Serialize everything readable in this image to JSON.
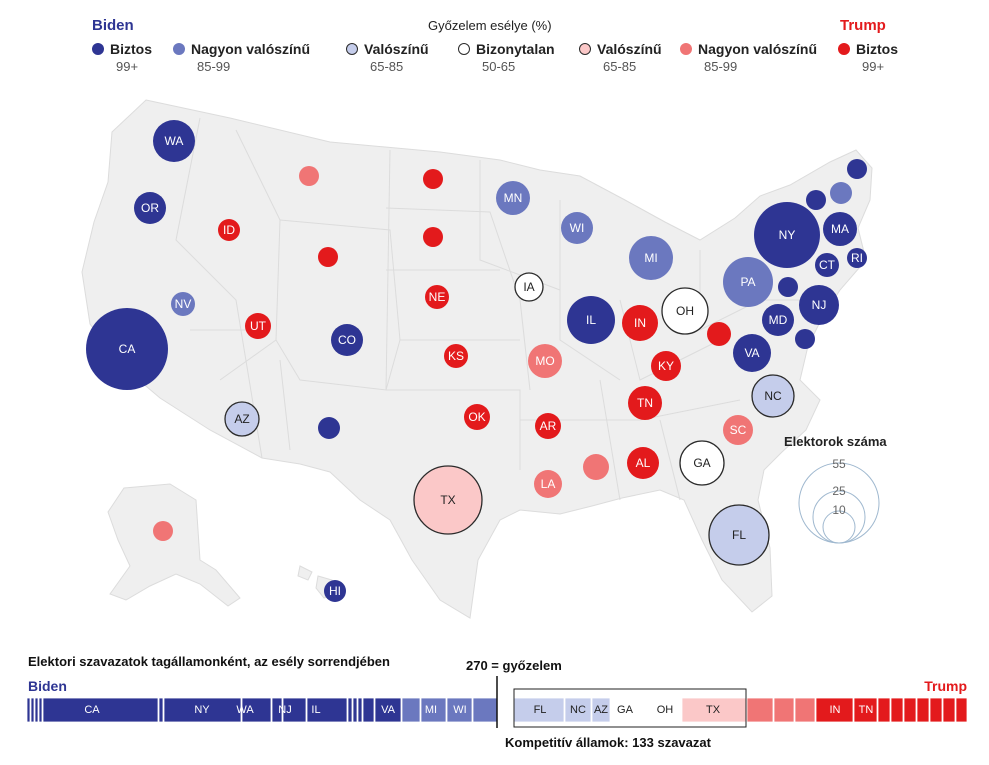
{
  "header": {
    "left_candidate": "Biden",
    "right_candidate": "Trump",
    "legend_title": "Győzelem esélye (%)",
    "colors": {
      "biden": "#2e3593",
      "trump": "#e31a1c"
    }
  },
  "legend": [
    {
      "label": "Biztos",
      "range": "99+",
      "color": "#2e3593",
      "stroke": "#2e3593"
    },
    {
      "label": "Nagyon valószínű",
      "range": "85-99",
      "color": "#6b78bf",
      "stroke": "#6b78bf"
    },
    {
      "label": "Valószínű",
      "range": "65-85",
      "color": "#c5cdeb",
      "stroke": "#2b2b2b"
    },
    {
      "label": "Bizonytalan",
      "range": "50-65",
      "color": "#ffffff",
      "stroke": "#2b2b2b"
    },
    {
      "label": "Valószínű",
      "range": "65-85",
      "color": "#fbc8c8",
      "stroke": "#2b2b2b"
    },
    {
      "label": "Nagyon valószínű",
      "range": "85-99",
      "color": "#f07575",
      "stroke": "#f07575"
    },
    {
      "label": "Biztos",
      "range": "99+",
      "color": "#e31a1c",
      "stroke": "#e31a1c"
    }
  ],
  "size_legend": {
    "title": "Elektorok száma",
    "values": [
      "55",
      "25",
      "10"
    ]
  },
  "states": [
    {
      "label": "WA",
      "cat": "safe-d"
    },
    {
      "label": "OR",
      "cat": "safe-d"
    },
    {
      "label": "CA",
      "cat": "safe-d"
    },
    {
      "label": "NV",
      "cat": "very-d"
    },
    {
      "label": "ID",
      "cat": "safe-r"
    },
    {
      "label": "UT",
      "cat": "safe-r"
    },
    {
      "label": "AZ",
      "cat": "likely-d"
    },
    {
      "label": "CO",
      "cat": "safe-d"
    },
    {
      "label": "",
      "cat": "safe-d"
    },
    {
      "label": "",
      "cat": "very-r"
    },
    {
      "label": "",
      "cat": "safe-r"
    },
    {
      "label": "",
      "cat": "safe-r"
    },
    {
      "label": "",
      "cat": "safe-r"
    },
    {
      "label": "NE",
      "cat": "safe-r"
    },
    {
      "label": "KS",
      "cat": "safe-r"
    },
    {
      "label": "OK",
      "cat": "safe-r"
    },
    {
      "label": "TX",
      "cat": "likely-r"
    },
    {
      "label": "MN",
      "cat": "very-d"
    },
    {
      "label": "IA",
      "cat": "tossup"
    },
    {
      "label": "MO",
      "cat": "very-r"
    },
    {
      "label": "AR",
      "cat": "safe-r"
    },
    {
      "label": "LA",
      "cat": "very-r"
    },
    {
      "label": "WI",
      "cat": "very-d"
    },
    {
      "label": "IL",
      "cat": "safe-d"
    },
    {
      "label": "MI",
      "cat": "very-d"
    },
    {
      "label": "IN",
      "cat": "safe-r"
    },
    {
      "label": "OH",
      "cat": "tossup"
    },
    {
      "label": "KY",
      "cat": "safe-r"
    },
    {
      "label": "TN",
      "cat": "safe-r"
    },
    {
      "label": "",
      "cat": "very-r"
    },
    {
      "label": "AL",
      "cat": "safe-r"
    },
    {
      "label": "GA",
      "cat": "tossup"
    },
    {
      "label": "FL",
      "cat": "likely-d"
    },
    {
      "label": "SC",
      "cat": "very-r"
    },
    {
      "label": "NC",
      "cat": "likely-d"
    },
    {
      "label": "VA",
      "cat": "safe-d"
    },
    {
      "label": "",
      "cat": "safe-r"
    },
    {
      "label": "PA",
      "cat": "very-d"
    },
    {
      "label": "NY",
      "cat": "safe-d"
    },
    {
      "label": "MD",
      "cat": "safe-d"
    },
    {
      "label": "",
      "cat": "safe-d"
    },
    {
      "label": "",
      "cat": "safe-d"
    },
    {
      "label": "NJ",
      "cat": "safe-d"
    },
    {
      "label": "CT",
      "cat": "safe-d"
    },
    {
      "label": "RI",
      "cat": "safe-d"
    },
    {
      "label": "MA",
      "cat": "safe-d"
    },
    {
      "label": "",
      "cat": "safe-d"
    },
    {
      "label": "",
      "cat": "very-d"
    },
    {
      "label": "",
      "cat": "safe-d"
    },
    {
      "label": "",
      "cat": "very-r"
    },
    {
      "label": "HI",
      "cat": "safe-d"
    }
  ],
  "bar": {
    "title": "Elektori szavazatok tagállamonként, az esély sorrendjében",
    "left_label": "Biden",
    "right_label": "Trump",
    "threshold_label": "270 = győzelem",
    "competitive_label": "Kompetitív államok: 133 szavazat",
    "labels": {
      "ca": "CA",
      "ny": "NY",
      "wa": "WA",
      "nj": "NJ",
      "il": "IL",
      "va": "VA",
      "mi": "MI",
      "wi": "WI",
      "fl": "FL",
      "nc": "NC",
      "az": "AZ",
      "ga": "GA",
      "oh": "OH",
      "tx": "TX",
      "in": "IN",
      "tn": "TN"
    }
  }
}
